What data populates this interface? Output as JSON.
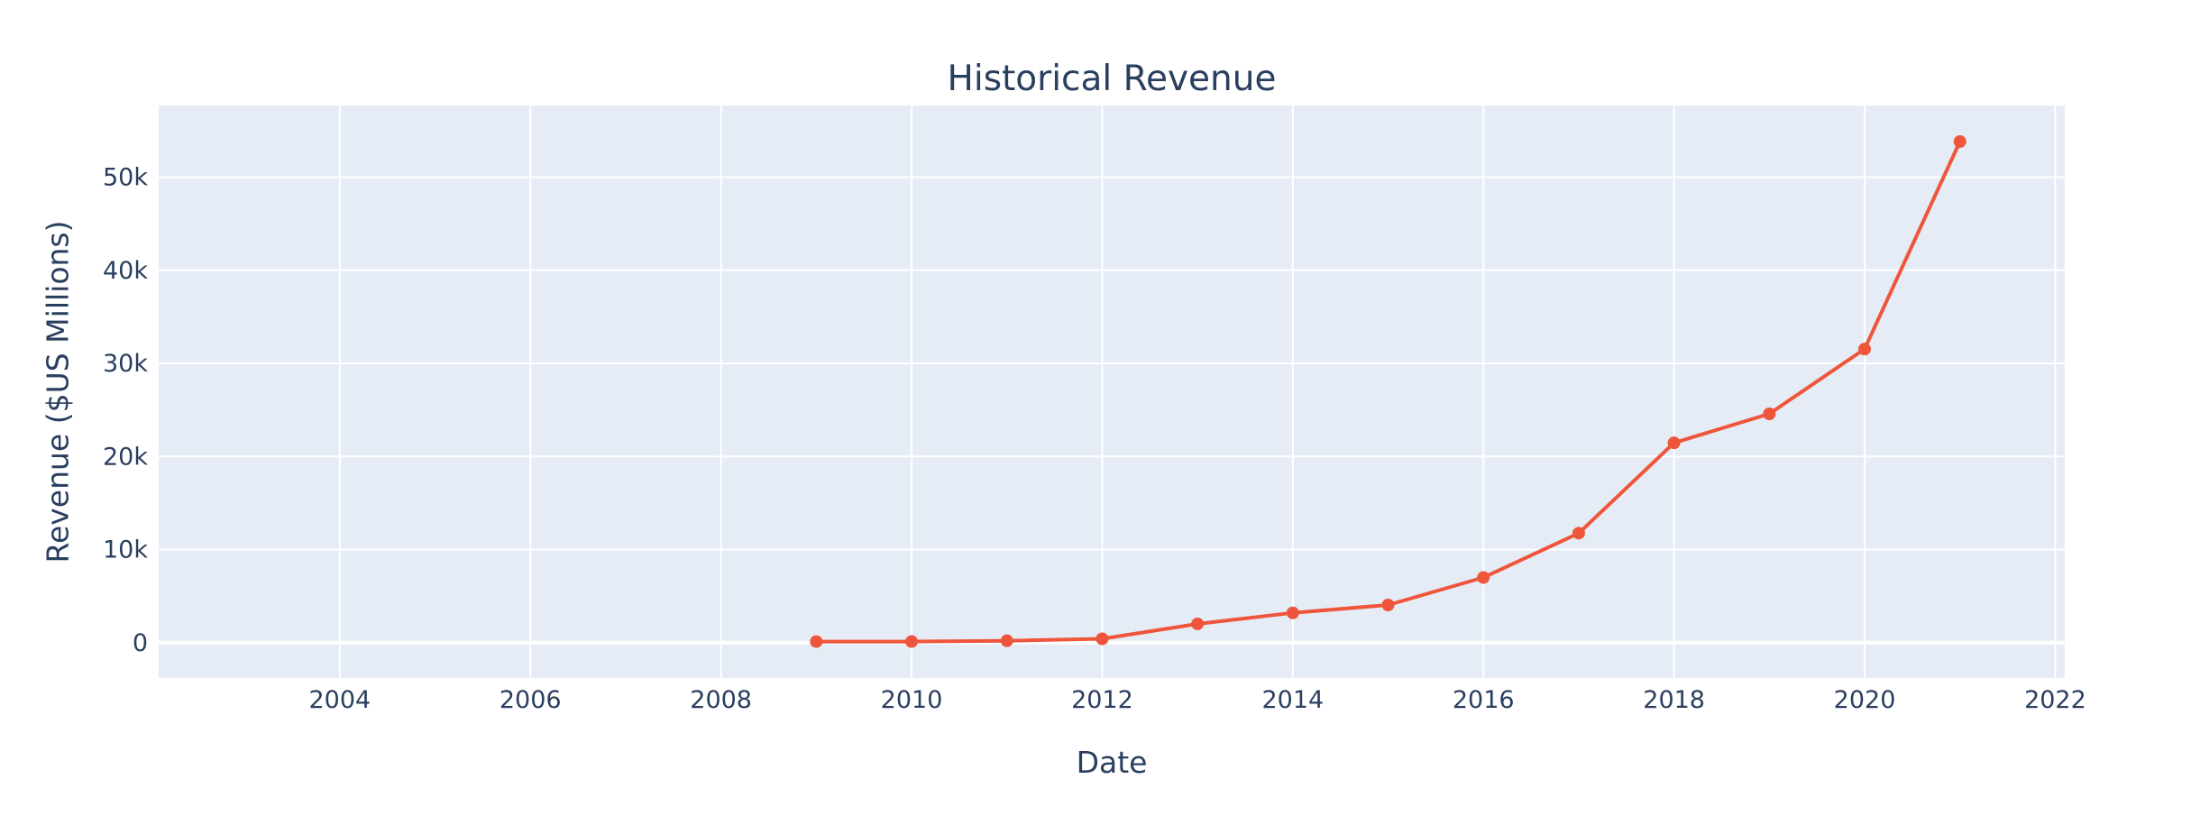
{
  "chart_data": {
    "type": "line",
    "title": "Historical Revenue",
    "xlabel": "Date",
    "ylabel": "Revenue ($US Millions)",
    "xlim": [
      2002.1,
      2022.1
    ],
    "ylim": [
      -3800,
      57700
    ],
    "x_ticks": [
      2004,
      2006,
      2008,
      2010,
      2012,
      2014,
      2016,
      2018,
      2020,
      2022
    ],
    "x_tick_labels": [
      "2004",
      "2006",
      "2008",
      "2010",
      "2012",
      "2014",
      "2016",
      "2018",
      "2020",
      "2022"
    ],
    "y_ticks": [
      0,
      10000,
      20000,
      30000,
      40000,
      50000
    ],
    "y_tick_labels": [
      "0",
      "10k",
      "20k",
      "30k",
      "40k",
      "50k"
    ],
    "grid": true,
    "series": [
      {
        "name": "Revenue",
        "color": "#ef553b",
        "x": [
          2009,
          2010,
          2011,
          2012,
          2013,
          2014,
          2015,
          2016,
          2017,
          2018,
          2019,
          2020,
          2021
        ],
        "values": [
          112,
          117,
          204,
          413,
          2013,
          3198,
          4046,
          7000,
          11759,
          21461,
          24578,
          31536,
          53823
        ]
      }
    ]
  },
  "colors": {
    "plot_background": "#e5ecf6",
    "text": "#2a3f5f",
    "line": "#ef553b"
  }
}
